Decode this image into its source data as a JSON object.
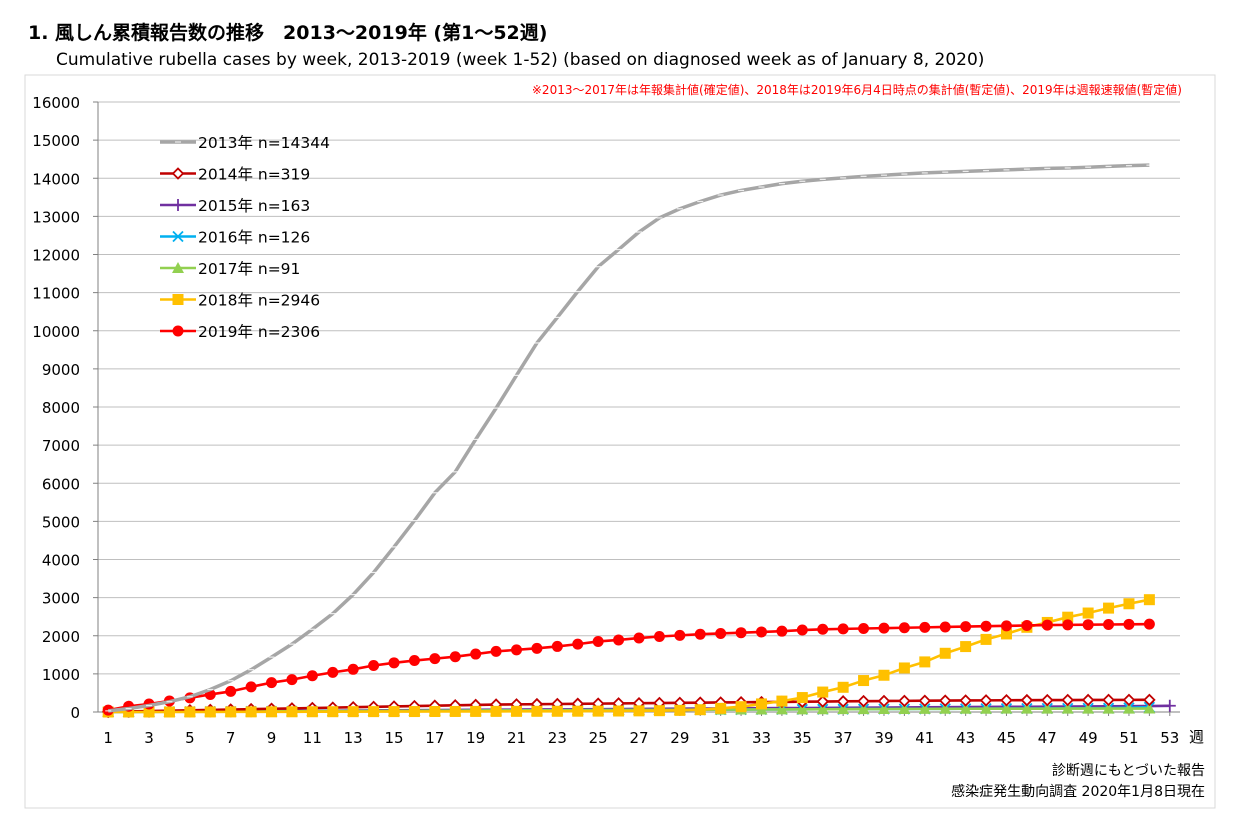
{
  "header": {
    "title": "1. 風しん累積報告数の推移　2013～2019年 (第1～52週)",
    "subtitle": "Cumulative rubella cases by week, 2013-2019 (week 1-52)  (based on diagnosed week as of January 8, 2020)"
  },
  "footer": {
    "line1": "診断週にもとづいた報告",
    "line2": "感染症発生動向調査 2020年1月8日現在"
  },
  "chart_data": {
    "type": "line",
    "note": "※2013～2017年は年報集計値(確定値)、2018年は2019年6月4日時点の集計値(暫定値)、2019年は週報速報値(暫定値)",
    "xlabel": "週",
    "ylabel": "",
    "xlim": [
      1,
      53
    ],
    "ylim": [
      0,
      16000
    ],
    "x_ticks": [
      1,
      3,
      5,
      7,
      9,
      11,
      13,
      15,
      17,
      19,
      21,
      23,
      25,
      27,
      29,
      31,
      33,
      35,
      37,
      39,
      41,
      43,
      45,
      47,
      49,
      51,
      53
    ],
    "y_ticks": [
      0,
      1000,
      2000,
      3000,
      4000,
      5000,
      6000,
      7000,
      8000,
      9000,
      10000,
      11000,
      12000,
      13000,
      14000,
      15000,
      16000
    ],
    "grid": "horizontal",
    "legend_position": "top-left",
    "series": [
      {
        "name": "2013年 n=14344",
        "color": "#a6a6a6",
        "marker": "dash",
        "values": [
          30,
          90,
          170,
          270,
          400,
          590,
          820,
          1110,
          1440,
          1780,
          2170,
          2580,
          3080,
          3660,
          4330,
          5020,
          5750,
          6300,
          7150,
          7970,
          8830,
          9680,
          10350,
          11030,
          11680,
          12130,
          12590,
          12960,
          13200,
          13390,
          13560,
          13680,
          13770,
          13860,
          13920,
          13970,
          14010,
          14050,
          14080,
          14110,
          14140,
          14160,
          14180,
          14200,
          14220,
          14240,
          14260,
          14270,
          14290,
          14310,
          14330,
          14344
        ]
      },
      {
        "name": "2014年 n=319",
        "color": "#c00000",
        "marker": "diamond",
        "values": [
          5,
          15,
          25,
          35,
          45,
          55,
          65,
          75,
          85,
          95,
          105,
          115,
          125,
          135,
          145,
          155,
          165,
          175,
          185,
          195,
          200,
          205,
          210,
          215,
          220,
          225,
          230,
          235,
          240,
          245,
          250,
          255,
          260,
          265,
          270,
          275,
          280,
          284,
          288,
          292,
          296,
          299,
          302,
          305,
          308,
          310,
          312,
          314,
          316,
          317,
          318,
          319
        ]
      },
      {
        "name": "2015年 n=163",
        "color": "#7030a0",
        "marker": "plus",
        "values": [
          3,
          6,
          9,
          12,
          15,
          18,
          21,
          24,
          27,
          30,
          33,
          36,
          39,
          42,
          45,
          48,
          51,
          54,
          57,
          60,
          63,
          66,
          69,
          72,
          75,
          78,
          81,
          84,
          87,
          90,
          93,
          96,
          99,
          102,
          105,
          108,
          111,
          114,
          117,
          120,
          123,
          126,
          129,
          132,
          135,
          138,
          141,
          144,
          147,
          150,
          153,
          156,
          163
        ]
      },
      {
        "name": "2016年 n=126",
        "color": "#00b0f0",
        "marker": "x",
        "values": [
          2,
          4,
          6,
          8,
          10,
          12,
          14,
          16,
          18,
          20,
          22,
          24,
          26,
          28,
          30,
          32,
          34,
          36,
          38,
          40,
          42,
          44,
          46,
          48,
          50,
          52,
          54,
          56,
          58,
          60,
          62,
          64,
          66,
          68,
          70,
          72,
          74,
          76,
          78,
          80,
          82,
          84,
          86,
          88,
          90,
          92,
          94,
          96,
          98,
          100,
          110,
          126
        ]
      },
      {
        "name": "2017年 n=91",
        "color": "#92d050",
        "marker": "triangle",
        "values": [
          2,
          4,
          6,
          8,
          10,
          12,
          14,
          16,
          18,
          20,
          22,
          24,
          26,
          28,
          30,
          32,
          34,
          36,
          38,
          40,
          42,
          44,
          46,
          48,
          50,
          52,
          54,
          56,
          58,
          60,
          62,
          64,
          66,
          68,
          70,
          72,
          74,
          76,
          78,
          80,
          82,
          84,
          85,
          86,
          87,
          88,
          88,
          89,
          89,
          90,
          90,
          91
        ]
      },
      {
        "name": "2018年 n=2946",
        "color": "#ffc000",
        "marker": "square",
        "values": [
          0,
          0,
          0,
          0,
          1,
          2,
          3,
          4,
          5,
          6,
          7,
          8,
          9,
          10,
          11,
          12,
          13,
          14,
          15,
          16,
          17,
          18,
          19,
          21,
          23,
          26,
          30,
          35,
          43,
          60,
          96,
          139,
          212,
          286,
          379,
          523,
          648,
          825,
          964,
          1155,
          1314,
          1540,
          1716,
          1904,
          2048,
          2222,
          2349,
          2487,
          2596,
          2725,
          2839,
          2946
        ]
      },
      {
        "name": "2019年 n=2306",
        "color": "#ff0000",
        "marker": "circle",
        "values": [
          50,
          150,
          210,
          290,
          370,
          460,
          540,
          660,
          770,
          850,
          950,
          1040,
          1120,
          1220,
          1290,
          1350,
          1400,
          1450,
          1520,
          1590,
          1630,
          1670,
          1720,
          1780,
          1850,
          1890,
          1940,
          1980,
          2010,
          2040,
          2060,
          2080,
          2100,
          2120,
          2150,
          2170,
          2180,
          2190,
          2200,
          2210,
          2220,
          2230,
          2240,
          2250,
          2260,
          2270,
          2280,
          2285,
          2290,
          2295,
          2300,
          2306
        ]
      }
    ]
  }
}
